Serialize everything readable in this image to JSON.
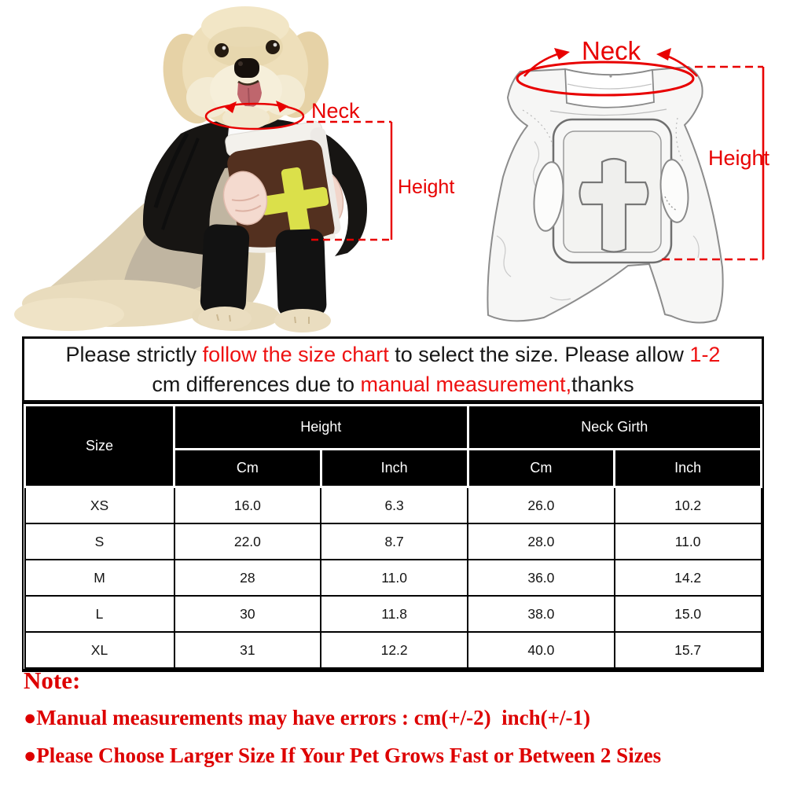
{
  "annotations": {
    "photo": {
      "neck": "Neck",
      "height": "Height"
    },
    "diagram": {
      "neck": "Neck",
      "height": "Height"
    }
  },
  "notice": {
    "lines": [
      [
        {
          "text": "Please strictly ",
          "red": false
        },
        {
          "text": "follow the size chart",
          "red": true
        },
        {
          "text": " to select the size. Please allow ",
          "red": false
        },
        {
          "text": "1-2",
          "red": true
        }
      ],
      [
        {
          "text": "cm differences due to ",
          "red": false
        },
        {
          "text": "manual measurement,",
          "red": true
        },
        {
          "text": "thanks",
          "red": false
        }
      ]
    ]
  },
  "size_chart": {
    "corner_label": "Size",
    "groups": [
      {
        "label": "Height"
      },
      {
        "label": "Neck Girth"
      }
    ],
    "sub_headers": [
      "Cm",
      "Inch",
      "Cm",
      "Inch"
    ],
    "rows": [
      [
        "XS",
        "16.0",
        "6.3",
        "26.0",
        "10.2"
      ],
      [
        "S",
        "22.0",
        "8.7",
        "28.0",
        "11.0"
      ],
      [
        "M",
        "28",
        "11.0",
        "36.0",
        "14.2"
      ],
      [
        "L",
        "30",
        "11.8",
        "38.0",
        "15.0"
      ],
      [
        "XL",
        "31",
        "12.2",
        "40.0",
        "15.7"
      ]
    ]
  },
  "notes": {
    "title": "Note:",
    "items": [
      "●Manual measurements may have errors : cm(+/-2)  inch(+/-1)",
      "●Please Choose Larger Size If Your Pet Grows Fast or Between 2 Sizes"
    ]
  },
  "colors": {
    "annotation_red": "#e80000",
    "notice_red": "#ee1111",
    "note_red": "#dd0000",
    "table_header_bg": "#000000",
    "table_header_text": "#ffffff",
    "bible_cover": "#53301f",
    "bible_cross_yellow": "#dbe04a"
  }
}
